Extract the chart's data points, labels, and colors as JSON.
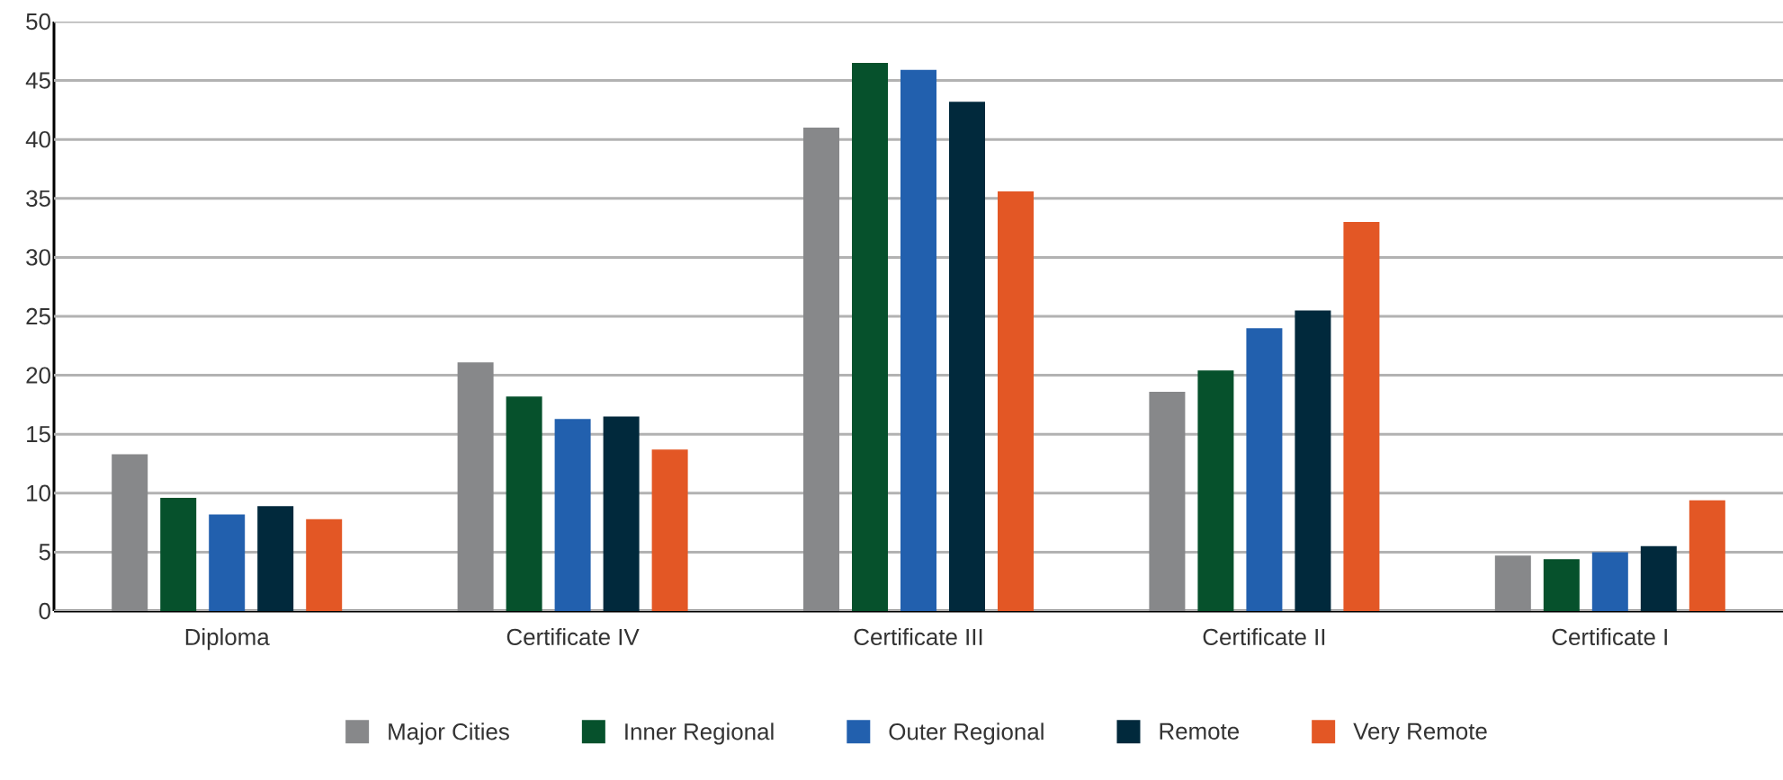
{
  "chart_data": {
    "type": "bar",
    "categories": [
      "Diploma",
      "Certificate IV",
      "Certificate III",
      "Certificate II",
      "Certificate I"
    ],
    "series": [
      {
        "name": "Major Cities",
        "color": "#87888a",
        "values": [
          13.3,
          21.1,
          41.0,
          18.6,
          4.7
        ]
      },
      {
        "name": "Inner Regional",
        "color": "#06512c",
        "values": [
          9.6,
          18.2,
          46.5,
          20.4,
          4.4
        ]
      },
      {
        "name": "Outer Regional",
        "color": "#2260ae",
        "values": [
          8.2,
          16.3,
          45.9,
          24.0,
          5.0
        ]
      },
      {
        "name": "Remote",
        "color": "#01293c",
        "values": [
          8.9,
          16.5,
          43.2,
          25.5,
          5.5
        ]
      },
      {
        "name": "Very Remote",
        "color": "#e35725",
        "values": [
          7.8,
          13.7,
          35.6,
          33.0,
          9.4
        ]
      }
    ],
    "ylim": [
      0,
      50
    ],
    "yticks": [
      0,
      5,
      10,
      15,
      20,
      25,
      30,
      35,
      40,
      45,
      50
    ],
    "grid": "y",
    "legend": "bottom"
  }
}
